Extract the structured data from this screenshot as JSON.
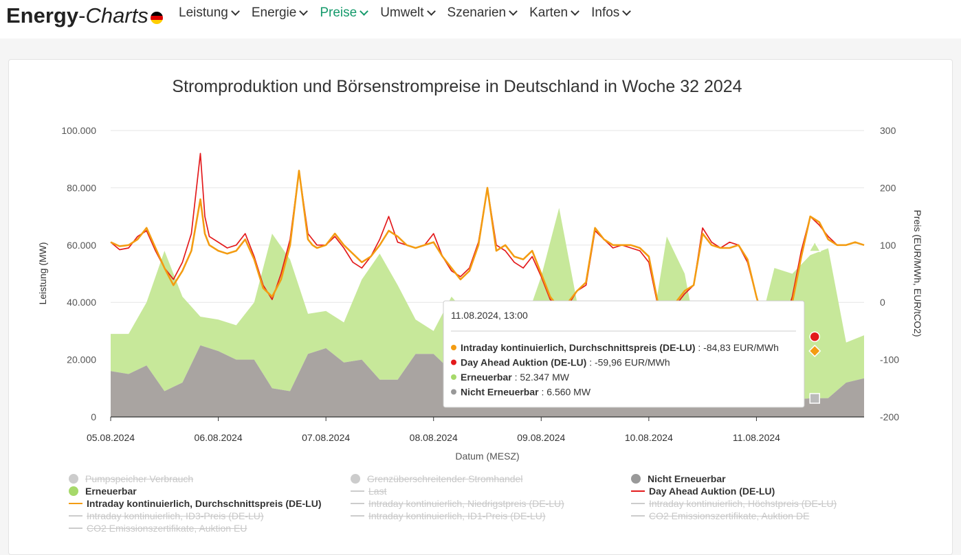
{
  "header": {
    "logo_part1": "Energy",
    "logo_dash": "-",
    "logo_part2": "Charts",
    "flag_colors": [
      "#000000",
      "#dd0000",
      "#ffce00"
    ],
    "nav": [
      {
        "label": "Leistung"
      },
      {
        "label": "Energie"
      },
      {
        "label": "Preise",
        "active": true
      },
      {
        "label": "Umwelt"
      },
      {
        "label": "Szenarien"
      },
      {
        "label": "Karten"
      },
      {
        "label": "Infos"
      }
    ],
    "accent_color": "#159a6b"
  },
  "chart_data": {
    "type": "area",
    "title": "Stromproduktion und Börsenstrompreise in Deutschland in Woche 32 2024",
    "xlabel": "Datum (MESZ)",
    "ylabel_left": "Leistung (MW)",
    "ylabel_right": "Preis (EUR/MWh, EUR/tCO2)",
    "x_ticks": [
      "05.08.2024",
      "06.08.2024",
      "07.08.2024",
      "08.08.2024",
      "09.08.2024",
      "10.08.2024",
      "11.08.2024"
    ],
    "y_left_ticks": [
      "100.000",
      "80.000",
      "60.000",
      "40.000",
      "20.000",
      "0"
    ],
    "y_right_ticks": [
      "300",
      "200",
      "100",
      "0",
      "-100",
      "-200"
    ],
    "y_left_range": [
      0,
      100000
    ],
    "y_right_range": [
      -200,
      300
    ],
    "x_range_hours": [
      0,
      168
    ],
    "grid": true,
    "legend_position": "bottom",
    "series": [
      {
        "name": "Nicht Erneuerbar",
        "kind": "area",
        "color": "#a9a4a1",
        "x_hours": [
          0,
          4,
          8,
          12,
          16,
          20,
          24,
          28,
          32,
          36,
          40,
          44,
          48,
          52,
          56,
          60,
          64,
          68,
          72,
          76,
          80,
          84,
          88,
          92,
          96,
          100,
          104,
          108,
          112,
          116,
          120,
          124,
          128,
          132,
          136,
          140,
          144,
          148,
          152,
          156,
          160,
          164,
          168
        ],
        "values": [
          16000,
          15000,
          18000,
          9000,
          12000,
          25000,
          23000,
          20000,
          20000,
          10000,
          9000,
          22000,
          24000,
          19000,
          20000,
          13000,
          13000,
          22000,
          22000,
          16000,
          13000,
          10000,
          7000,
          11000,
          11000,
          10000,
          10000,
          8000,
          7000,
          9000,
          9000,
          11000,
          10000,
          7000,
          6000,
          6000,
          7000,
          6000,
          6000,
          6500,
          6560,
          12000,
          13500
        ]
      },
      {
        "name": "Erneuerbar",
        "kind": "area_stacked",
        "color": "#c7e89a",
        "x_hours": [
          0,
          4,
          8,
          12,
          16,
          20,
          24,
          28,
          32,
          36,
          40,
          44,
          48,
          52,
          56,
          60,
          64,
          68,
          72,
          76,
          80,
          84,
          88,
          92,
          96,
          100,
          104,
          108,
          112,
          116,
          120,
          124,
          128,
          132,
          136,
          140,
          144,
          148,
          152,
          156,
          160,
          164,
          168
        ],
        "values": [
          13000,
          14000,
          22000,
          49000,
          30000,
          10000,
          11000,
          12000,
          20000,
          54000,
          46000,
          14000,
          13000,
          14000,
          28000,
          44000,
          33000,
          12000,
          8000,
          26000,
          22000,
          20000,
          18000,
          20000,
          38000,
          63000,
          30000,
          10000,
          8000,
          10000,
          15000,
          52000,
          40000,
          10000,
          8000,
          9000,
          20000,
          46000,
          44000,
          50000,
          52347,
          14000,
          15000
        ]
      },
      {
        "name": "Intraday kontinuierlich, Durchschnittspreis (DE-LU)",
        "kind": "line",
        "axis": "right",
        "color": "#f39c12",
        "x_hours": [
          0,
          2,
          4,
          6,
          8,
          10,
          12,
          14,
          16,
          18,
          20,
          21,
          22,
          24,
          26,
          28,
          30,
          32,
          34,
          36,
          38,
          40,
          42,
          44,
          45,
          46,
          48,
          50,
          52,
          54,
          56,
          58,
          60,
          62,
          64,
          66,
          68,
          70,
          72,
          74,
          76,
          78,
          80,
          82,
          84,
          86,
          88,
          90,
          92,
          94,
          96,
          98,
          100,
          102,
          104,
          106,
          108,
          110,
          112,
          114,
          116,
          118,
          120,
          122,
          124,
          126,
          128,
          130,
          132,
          134,
          136,
          138,
          140,
          142,
          144,
          146,
          148,
          150,
          152,
          154,
          156,
          158,
          160,
          162,
          164,
          166,
          168
        ],
        "values": [
          105,
          98,
          100,
          110,
          130,
          95,
          60,
          30,
          55,
          90,
          180,
          120,
          100,
          90,
          85,
          90,
          110,
          75,
          25,
          10,
          40,
          100,
          230,
          110,
          100,
          95,
          100,
          120,
          100,
          85,
          70,
          80,
          100,
          125,
          115,
          100,
          95,
          100,
          105,
          80,
          60,
          40,
          55,
          100,
          200,
          90,
          100,
          80,
          75,
          90,
          50,
          10,
          -10,
          0,
          20,
          35,
          130,
          110,
          100,
          100,
          100,
          95,
          80,
          0,
          -10,
          0,
          20,
          30,
          120,
          100,
          95,
          95,
          100,
          75,
          10,
          -45,
          -84.83,
          -30,
          0,
          80,
          150,
          140,
          110,
          100,
          100,
          105,
          100
        ]
      },
      {
        "name": "Day Ahead Auktion (DE-LU)",
        "kind": "line",
        "axis": "right",
        "color": "#e31a1c",
        "x_hours": [
          0,
          2,
          4,
          6,
          8,
          10,
          12,
          14,
          16,
          18,
          20,
          21,
          22,
          24,
          26,
          28,
          30,
          32,
          34,
          36,
          38,
          40,
          42,
          44,
          45,
          46,
          48,
          50,
          52,
          54,
          56,
          58,
          60,
          62,
          64,
          66,
          68,
          70,
          72,
          74,
          76,
          78,
          80,
          82,
          84,
          86,
          88,
          90,
          92,
          94,
          96,
          98,
          100,
          102,
          104,
          106,
          108,
          110,
          112,
          114,
          116,
          118,
          120,
          122,
          124,
          126,
          128,
          130,
          132,
          134,
          136,
          138,
          140,
          142,
          144,
          146,
          148,
          150,
          152,
          154,
          156,
          158,
          160,
          162,
          164,
          166,
          168
        ],
        "values": [
          105,
          92,
          95,
          115,
          125,
          90,
          60,
          40,
          70,
          120,
          260,
          150,
          115,
          105,
          95,
          100,
          120,
          80,
          30,
          5,
          50,
          110,
          230,
          120,
          110,
          100,
          100,
          115,
          95,
          70,
          60,
          80,
          110,
          150,
          105,
          100,
          95,
          100,
          120,
          80,
          55,
          45,
          60,
          105,
          200,
          100,
          90,
          70,
          60,
          80,
          45,
          5,
          -10,
          -5,
          20,
          30,
          125,
          110,
          95,
          100,
          95,
          90,
          70,
          -5,
          -15,
          -5,
          15,
          30,
          130,
          105,
          95,
          105,
          100,
          70,
          10,
          -35,
          -59.96,
          -40,
          10,
          90,
          150,
          135,
          115,
          100,
          100,
          105,
          100
        ]
      }
    ],
    "tooltip": {
      "date": "11.08.2024, 13:00",
      "rows": [
        {
          "label": "Intraday kontinuierlich, Durchschnittspreis (DE-LU)",
          "value": ": -84,83 EUR/MWh",
          "color": "#f39c12"
        },
        {
          "label": "Day Ahead Auktion (DE-LU)",
          "value": ": -59,96 EUR/MWh",
          "color": "#e31a1c"
        },
        {
          "label": "Erneuerbar",
          "value": ": 52.347 MW",
          "color": "#a6d96a"
        },
        {
          "label": "Nicht Erneuerbar",
          "value": ": 6.560 MW",
          "color": "#999999"
        }
      ]
    },
    "legend": [
      {
        "label": "Pumpspeicher Verbrauch",
        "kind": "dot",
        "color": "#cccccc",
        "enabled": false
      },
      {
        "label": "Grenzüberschreitender Stromhandel",
        "kind": "dot",
        "color": "#cccccc",
        "enabled": false
      },
      {
        "label": "Nicht Erneuerbar",
        "kind": "dot",
        "color": "#999999",
        "enabled": true
      },
      {
        "label": "Erneuerbar",
        "kind": "dot",
        "color": "#a6d96a",
        "enabled": true
      },
      {
        "label": "Last",
        "kind": "line",
        "color": "#cccccc",
        "enabled": false
      },
      {
        "label": "Day Ahead Auktion (DE-LU)",
        "kind": "line",
        "color": "#e31a1c",
        "enabled": true
      },
      {
        "label": "Intraday kontinuierlich, Durchschnittspreis (DE-LU)",
        "kind": "line",
        "color": "#f39c12",
        "enabled": true
      },
      {
        "label": "Intraday kontinuierlich, Niedrigstpreis (DE-LU)",
        "kind": "line",
        "color": "#cccccc",
        "enabled": false
      },
      {
        "label": "Intraday kontinuierlich, Höchstpreis (DE-LU)",
        "kind": "line",
        "color": "#cccccc",
        "enabled": false
      },
      {
        "label": "Intraday kontinuierlich, ID3-Preis (DE-LU)",
        "kind": "line",
        "color": "#cccccc",
        "enabled": false
      },
      {
        "label": "Intraday kontinuierlich, ID1-Preis (DE-LU)",
        "kind": "line",
        "color": "#cccccc",
        "enabled": false
      },
      {
        "label": "CO2 Emissionszertifikate, Auktion DE",
        "kind": "line",
        "color": "#cccccc",
        "enabled": false
      },
      {
        "label": "CO2 Emissionszertifikate, Auktion EU",
        "kind": "line",
        "color": "#cccccc",
        "enabled": false
      }
    ]
  }
}
